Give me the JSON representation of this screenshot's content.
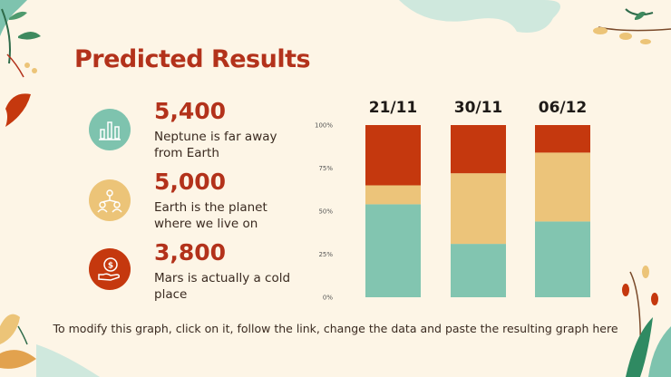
{
  "title": "Predicted Results",
  "stats": [
    {
      "value": "5,400",
      "desc": "Neptune is far away from Earth",
      "icon": "bar-chart-icon",
      "color": "#7ec3ae"
    },
    {
      "value": "5,000",
      "desc": "Earth is the planet where we live on",
      "icon": "people-network-icon",
      "color": "#ecc478"
    },
    {
      "value": "3,800",
      "desc": "Mars is actually a cold place",
      "icon": "money-hand-icon",
      "color": "#c5380e"
    }
  ],
  "footer": "To modify this graph, click on it, follow the link, change the data and paste the resulting graph here",
  "chart_data": {
    "type": "bar",
    "stacked": true,
    "categories": [
      "21/11",
      "30/11",
      "06/12"
    ],
    "series": [
      {
        "values": [
          54,
          31,
          44
        ],
        "color": "#82c5b0"
      },
      {
        "values": [
          11,
          41,
          40
        ],
        "color": "#ecc47a"
      },
      {
        "values": [
          35,
          28,
          16
        ],
        "color": "#c5380e"
      }
    ],
    "yticks": [
      "0%",
      "25%",
      "50%",
      "75%",
      "100%"
    ],
    "ylim": [
      0,
      100
    ],
    "grid": false
  }
}
